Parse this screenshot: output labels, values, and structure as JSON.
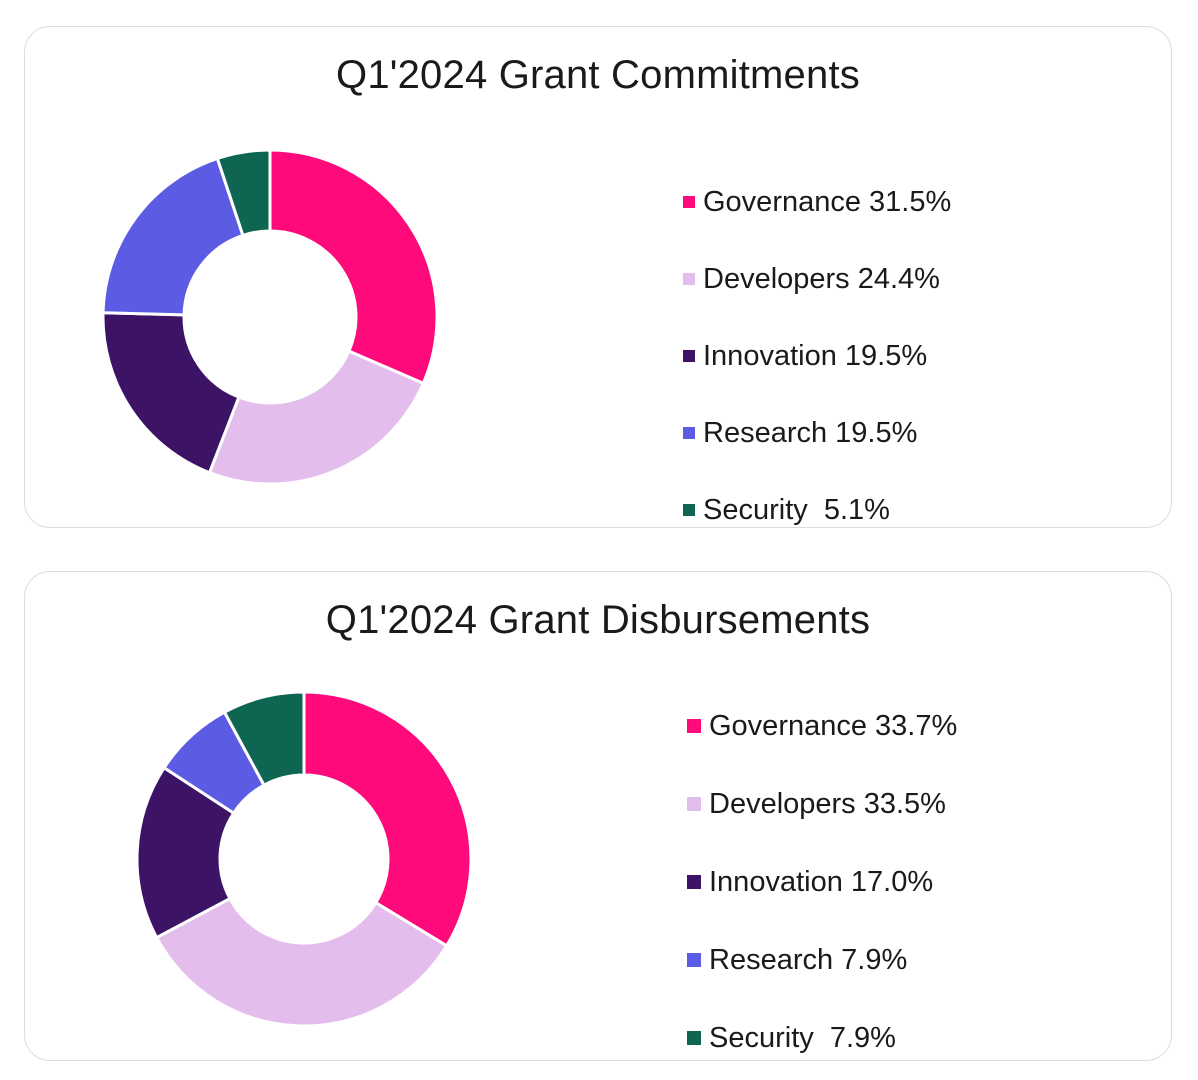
{
  "chart_data": [
    {
      "type": "pie",
      "title": "Q1'2024 Grant Commitments",
      "categories": [
        "Governance",
        "Developers",
        "Innovation",
        "Research",
        "Security"
      ],
      "values": [
        31.5,
        24.4,
        19.5,
        19.5,
        5.1
      ],
      "legend_labels": [
        "Governance 31.5%",
        "Developers 24.4%",
        "Innovation 19.5%",
        "Research 19.5%",
        "Security  5.1%"
      ],
      "colors": [
        "#ff0a7a",
        "#e3bdec",
        "#3d1366",
        "#5b5ce3",
        "#0e6652"
      ],
      "legend_position": "right",
      "donut": true
    },
    {
      "type": "pie",
      "title": "Q1'2024 Grant Disbursements",
      "categories": [
        "Governance",
        "Developers",
        "Innovation",
        "Research",
        "Security"
      ],
      "values": [
        33.7,
        33.5,
        17.0,
        7.9,
        7.9
      ],
      "legend_labels": [
        "Governance 33.7%",
        "Developers 33.5%",
        "Innovation 17.0%",
        "Research 7.9%",
        "Security  7.9%"
      ],
      "colors": [
        "#ff0a7a",
        "#e3bdec",
        "#3d1366",
        "#5b5ce3",
        "#0e6652"
      ],
      "legend_position": "right",
      "donut": true
    }
  ]
}
